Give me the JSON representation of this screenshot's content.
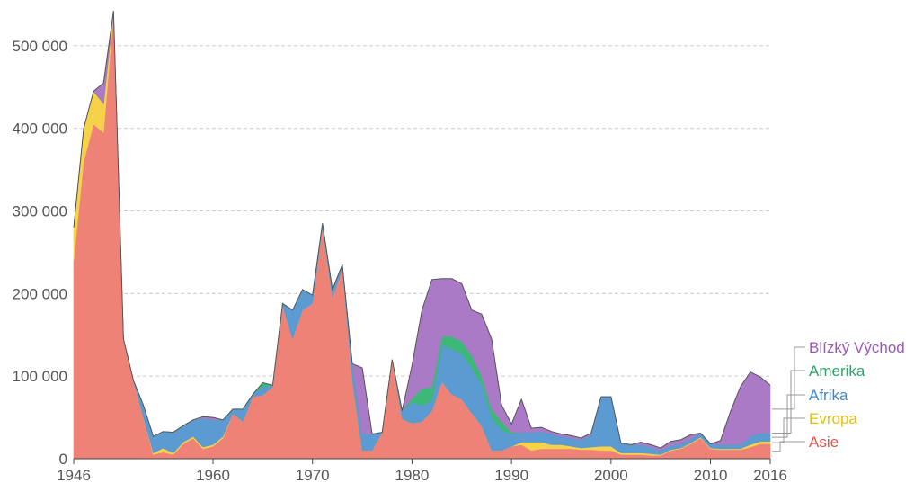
{
  "chart_data": {
    "type": "area",
    "stacked": true,
    "title": "",
    "xlabel": "",
    "ylabel": "",
    "xlim": [
      1946,
      2016
    ],
    "ylim": [
      0,
      550000
    ],
    "grid": true,
    "legend_position": "right, at series ends",
    "x_ticks": [
      1946,
      1960,
      1970,
      1980,
      1990,
      2000,
      2010,
      2016
    ],
    "x_tick_labels": [
      "1946",
      "1960",
      "1970",
      "1980",
      "1990",
      "2000",
      "2010",
      "2016"
    ],
    "y_ticks": [
      0,
      100000,
      200000,
      300000,
      400000,
      500000
    ],
    "y_tick_labels": [
      "0",
      "100 000",
      "200 000",
      "300 000",
      "400 000",
      "500 000"
    ],
    "x": [
      1946,
      1947,
      1948,
      1949,
      1950,
      1951,
      1952,
      1953,
      1954,
      1955,
      1956,
      1957,
      1958,
      1959,
      1960,
      1961,
      1962,
      1963,
      1964,
      1965,
      1966,
      1967,
      1968,
      1969,
      1970,
      1971,
      1972,
      1973,
      1974,
      1975,
      1976,
      1977,
      1978,
      1979,
      1980,
      1981,
      1982,
      1983,
      1984,
      1985,
      1986,
      1987,
      1988,
      1989,
      1990,
      1991,
      1992,
      1993,
      1994,
      1995,
      1996,
      1997,
      1998,
      1999,
      2000,
      2001,
      2002,
      2003,
      2004,
      2005,
      2006,
      2007,
      2008,
      2009,
      2010,
      2011,
      2012,
      2013,
      2014,
      2015,
      2016
    ],
    "series": [
      {
        "name": "Asie",
        "color": "#ef8277",
        "values": [
          240000,
          360000,
          405000,
          395000,
          540000,
          145000,
          95000,
          50000,
          5000,
          8000,
          5000,
          18000,
          25000,
          12000,
          15000,
          25000,
          55000,
          45000,
          75000,
          77000,
          87000,
          185000,
          145000,
          180000,
          188000,
          280000,
          195000,
          230000,
          95000,
          10000,
          10000,
          32000,
          120000,
          48000,
          43000,
          45000,
          58000,
          93000,
          78000,
          72000,
          55000,
          40000,
          10000,
          10000,
          15000,
          17000,
          10000,
          12000,
          12000,
          12000,
          12000,
          11000,
          11000,
          10000,
          10000,
          5000,
          5000,
          5000,
          4000,
          4000,
          10000,
          12000,
          18000,
          25000,
          12000,
          11000,
          11000,
          11000,
          14000,
          18000,
          18000
        ]
      },
      {
        "name": "Evropa",
        "color": "#f5d24a",
        "values": [
          40000,
          40000,
          40000,
          35000,
          2000,
          0,
          0,
          0,
          2000,
          5000,
          2000,
          2000,
          2000,
          2000,
          2000,
          2000,
          0,
          0,
          0,
          0,
          0,
          0,
          0,
          0,
          0,
          0,
          0,
          0,
          0,
          0,
          0,
          0,
          0,
          0,
          0,
          0,
          0,
          0,
          0,
          0,
          0,
          0,
          0,
          0,
          0,
          3000,
          10000,
          8000,
          5000,
          5000,
          3000,
          2000,
          3000,
          5000,
          5000,
          2000,
          2000,
          2000,
          2000,
          1000,
          1000,
          1000,
          1000,
          1000,
          1000,
          1000,
          1000,
          1000,
          3000,
          3000,
          3000
        ]
      },
      {
        "name": "Afrika",
        "color": "#5b9bd1",
        "values": [
          0,
          0,
          0,
          0,
          0,
          0,
          0,
          15000,
          20000,
          20000,
          25000,
          20000,
          20000,
          35000,
          30000,
          20000,
          5000,
          15000,
          3000,
          10000,
          2000,
          3000,
          35000,
          25000,
          10000,
          5000,
          10000,
          5000,
          20000,
          20000,
          20000,
          0,
          0,
          10000,
          25000,
          20000,
          12000,
          45000,
          55000,
          55000,
          55000,
          50000,
          40000,
          25000,
          15000,
          12000,
          12000,
          13000,
          13000,
          10000,
          10000,
          10000,
          15000,
          60000,
          60000,
          12000,
          10000,
          10000,
          8000,
          5000,
          5000,
          5000,
          5000,
          5000,
          5000,
          5000,
          5000,
          5000,
          10000,
          10000,
          10000
        ]
      },
      {
        "name": "Amerika",
        "color": "#3cb878",
        "values": [
          0,
          0,
          0,
          0,
          0,
          0,
          0,
          0,
          0,
          0,
          0,
          0,
          0,
          0,
          0,
          0,
          0,
          0,
          0,
          5000,
          0,
          0,
          0,
          0,
          0,
          0,
          0,
          0,
          0,
          0,
          0,
          0,
          0,
          0,
          5000,
          20000,
          17000,
          10000,
          15000,
          15000,
          15000,
          10000,
          10000,
          10000,
          2000,
          0,
          0,
          0,
          0,
          0,
          0,
          0,
          0,
          0,
          0,
          0,
          0,
          0,
          0,
          0,
          0,
          0,
          0,
          0,
          0,
          0,
          0,
          0,
          0,
          0,
          0
        ]
      },
      {
        "name": "Blízký Východ",
        "color": "#aa7ac6",
        "values": [
          0,
          0,
          0,
          25000,
          0,
          0,
          0,
          0,
          0,
          0,
          0,
          0,
          0,
          2000,
          3000,
          0,
          0,
          0,
          0,
          0,
          0,
          0,
          0,
          0,
          0,
          0,
          0,
          0,
          0,
          80000,
          0,
          0,
          0,
          0,
          40000,
          95000,
          130000,
          70000,
          70000,
          70000,
          55000,
          75000,
          85000,
          20000,
          10000,
          40000,
          5000,
          5000,
          3000,
          3000,
          3000,
          2000,
          2000,
          0,
          0,
          0,
          0,
          3000,
          3000,
          3000,
          5000,
          5000,
          5000,
          0,
          0,
          5000,
          40000,
          70000,
          78000,
          68000,
          58000
        ]
      }
    ]
  }
}
